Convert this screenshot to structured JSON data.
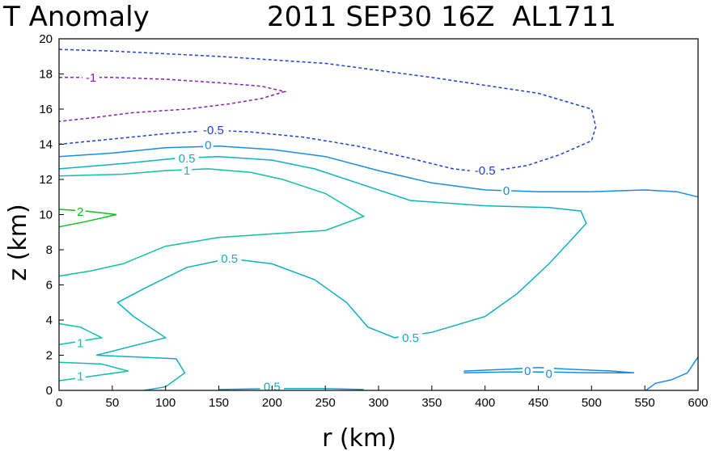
{
  "title_left": "T Anomaly",
  "title_right": "2011 SEP30 16Z  AL1711",
  "chart_data": {
    "type": "contour",
    "title": "T Anomaly  2011 SEP30 16Z  AL1711",
    "xlabel": "r (km)",
    "ylabel": "z (km)",
    "xlim": [
      0,
      600
    ],
    "ylim": [
      0,
      20
    ],
    "xticks": [
      0,
      50,
      100,
      150,
      200,
      250,
      300,
      350,
      400,
      450,
      500,
      550,
      600
    ],
    "yticks": [
      0,
      2,
      4,
      6,
      8,
      10,
      12,
      14,
      16,
      18,
      20
    ],
    "contours": [
      {
        "level": "-0.5",
        "color": "#1f3fd8",
        "dashed": true,
        "points": [
          [
            0,
            19.4
          ],
          [
            50,
            19.3
          ],
          [
            150,
            19.0
          ],
          [
            250,
            18.6
          ],
          [
            350,
            17.8
          ],
          [
            450,
            16.9
          ],
          [
            500,
            16.0
          ],
          [
            504,
            15.0
          ],
          [
            500,
            14.2
          ],
          [
            470,
            13.4
          ],
          [
            440,
            12.8
          ],
          [
            400,
            12.4
          ],
          [
            370,
            12.6
          ],
          [
            330,
            13.2
          ],
          [
            280,
            13.9
          ],
          [
            230,
            14.4
          ],
          [
            180,
            14.7
          ],
          [
            145,
            14.8
          ],
          [
            100,
            14.6
          ],
          [
            50,
            14.3
          ],
          [
            0,
            14.0
          ]
        ]
      },
      {
        "level": "-1",
        "color": "#8a1fb0",
        "dashed": true,
        "points": [
          [
            0,
            17.8
          ],
          [
            50,
            17.8
          ],
          [
            100,
            17.7
          ],
          [
            150,
            17.5
          ],
          [
            190,
            17.3
          ],
          [
            212,
            17.0
          ],
          [
            190,
            16.6
          ],
          [
            160,
            16.3
          ],
          [
            120,
            16.0
          ],
          [
            70,
            15.8
          ],
          [
            30,
            15.5
          ],
          [
            0,
            15.3
          ]
        ]
      },
      {
        "level": "0",
        "color": "#1a8ce0",
        "dashed": false,
        "points": [
          [
            0,
            13.3
          ],
          [
            50,
            13.5
          ],
          [
            100,
            13.8
          ],
          [
            150,
            13.9
          ],
          [
            200,
            13.7
          ],
          [
            250,
            13.3
          ],
          [
            300,
            12.5
          ],
          [
            350,
            11.8
          ],
          [
            400,
            11.4
          ],
          [
            450,
            11.3
          ],
          [
            500,
            11.3
          ],
          [
            550,
            11.4
          ],
          [
            580,
            11.3
          ],
          [
            600,
            11.0
          ]
        ]
      },
      {
        "level": "0.5",
        "color": "#10b0c0",
        "dashed": false,
        "points": [
          [
            0,
            12.6
          ],
          [
            60,
            12.9
          ],
          [
            110,
            13.2
          ],
          [
            150,
            13.3
          ],
          [
            200,
            13.1
          ],
          [
            240,
            12.6
          ],
          [
            290,
            11.6
          ],
          [
            330,
            10.8
          ],
          [
            400,
            10.5
          ],
          [
            460,
            10.4
          ],
          [
            490,
            10.2
          ],
          [
            495,
            9.5
          ],
          [
            480,
            8.5
          ],
          [
            460,
            7.2
          ],
          [
            430,
            5.5
          ],
          [
            400,
            4.2
          ],
          [
            350,
            3.3
          ],
          [
            315,
            3.0
          ],
          [
            290,
            3.6
          ],
          [
            270,
            5.0
          ],
          [
            240,
            6.3
          ],
          [
            200,
            7.2
          ],
          [
            160,
            7.5
          ],
          [
            120,
            7.0
          ],
          [
            80,
            5.8
          ],
          [
            55,
            5.0
          ],
          [
            70,
            4.2
          ],
          [
            100,
            3.0
          ],
          [
            35,
            2.0
          ],
          [
            110,
            1.8
          ],
          [
            118,
            1.0
          ],
          [
            100,
            0.2
          ],
          [
            80,
            0
          ]
        ]
      },
      {
        "level": "1",
        "color": "#10c0a8",
        "dashed": false,
        "points": [
          [
            0,
            12.2
          ],
          [
            60,
            12.3
          ],
          [
            100,
            12.5
          ],
          [
            140,
            12.6
          ],
          [
            180,
            12.4
          ],
          [
            210,
            12.0
          ],
          [
            250,
            11.2
          ],
          [
            286,
            9.9
          ],
          [
            250,
            9.1
          ],
          [
            200,
            8.9
          ],
          [
            150,
            8.7
          ],
          [
            100,
            8.2
          ],
          [
            60,
            7.2
          ],
          [
            30,
            6.8
          ],
          [
            0,
            6.5
          ]
        ]
      },
      {
        "level": "1",
        "color": "#10c0a8",
        "dashed": false,
        "points": [
          [
            0,
            3.8
          ],
          [
            20,
            3.6
          ],
          [
            40,
            3.0
          ],
          [
            20,
            2.8
          ],
          [
            0,
            2.6
          ]
        ]
      },
      {
        "level": "1",
        "color": "#10c0a8",
        "dashed": false,
        "points": [
          [
            0,
            0.55
          ],
          [
            30,
            0.8
          ],
          [
            65,
            1.1
          ],
          [
            40,
            1.5
          ],
          [
            0,
            1.6
          ]
        ]
      },
      {
        "level": "2",
        "color": "#10c020",
        "dashed": false,
        "points": [
          [
            0,
            10.3
          ],
          [
            25,
            10.2
          ],
          [
            54,
            10.0
          ],
          [
            25,
            9.6
          ],
          [
            0,
            9.3
          ]
        ]
      },
      {
        "level": "0",
        "color": "#1a8ce0",
        "dashed": false,
        "points": [
          [
            380,
            1.1
          ],
          [
            420,
            1.2
          ],
          [
            450,
            1.3
          ],
          [
            480,
            1.2
          ],
          [
            520,
            1.1
          ],
          [
            540,
            1.0
          ],
          [
            500,
            1.0
          ],
          [
            460,
            1.05
          ],
          [
            420,
            1.05
          ],
          [
            380,
            1.0
          ]
        ]
      },
      {
        "level": "0",
        "color": "#1a8ce0",
        "dashed": false,
        "points": [
          [
            551,
            0
          ],
          [
            560,
            0.4
          ],
          [
            575,
            0.6
          ],
          [
            590,
            1.0
          ],
          [
            600,
            1.9
          ]
        ]
      },
      {
        "level": "0.5",
        "color": "#10b0c0",
        "dashed": false,
        "points": [
          [
            150,
            0.05
          ],
          [
            200,
            0.1
          ],
          [
            250,
            0.1
          ],
          [
            286,
            0.05
          ]
        ]
      }
    ],
    "contour_labels": [
      {
        "text": "-1",
        "x": 30,
        "y": 17.8,
        "color": "#8a1fb0"
      },
      {
        "text": "-0.5",
        "x": 145,
        "y": 14.8,
        "color": "#1f3fd8"
      },
      {
        "text": "-0.5",
        "x": 400,
        "y": 12.5,
        "color": "#1f3fd8"
      },
      {
        "text": "0",
        "x": 140,
        "y": 13.95,
        "color": "#1a8ce0"
      },
      {
        "text": "0",
        "x": 420,
        "y": 11.35,
        "color": "#1a8ce0"
      },
      {
        "text": "0",
        "x": 440,
        "y": 1.1,
        "color": "#1a8ce0"
      },
      {
        "text": "0",
        "x": 460,
        "y": 0.95,
        "color": "#1a8ce0"
      },
      {
        "text": "0.5",
        "x": 120,
        "y": 13.2,
        "color": "#10b0c0"
      },
      {
        "text": "0.5",
        "x": 160,
        "y": 7.5,
        "color": "#10b0c0"
      },
      {
        "text": "0.5",
        "x": 330,
        "y": 3.0,
        "color": "#10b0c0"
      },
      {
        "text": "0.5",
        "x": 200,
        "y": 0.2,
        "color": "#10b0c0"
      },
      {
        "text": "1",
        "x": 120,
        "y": 12.5,
        "color": "#10c0a8"
      },
      {
        "text": "1",
        "x": 20,
        "y": 2.7,
        "color": "#10c0a8"
      },
      {
        "text": "1",
        "x": 20,
        "y": 0.8,
        "color": "#10c0a8"
      },
      {
        "text": "2",
        "x": 20,
        "y": 10.15,
        "color": "#10c020"
      }
    ]
  }
}
